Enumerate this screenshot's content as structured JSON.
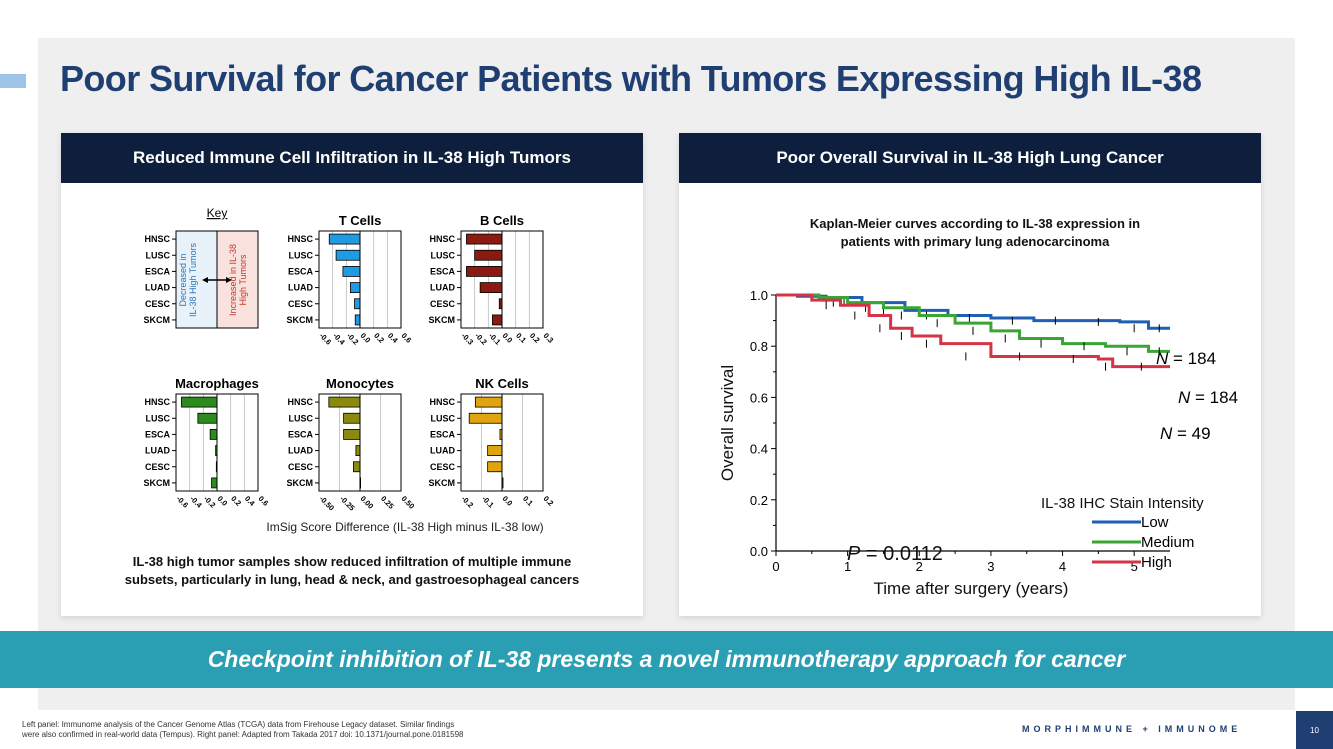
{
  "slide": {
    "title": "Poor Survival for Cancer Patients with Tumors Expressing High IL-38",
    "banner": "Checkpoint inhibition of IL-38 presents a novel immunotherapy approach for cancer",
    "footnote_line1": "Left panel: Immunome analysis of the Cancer Genome Atlas (TCGA) data from Firehouse Legacy dataset. Similar findings",
    "footnote_line2": "were also confirmed in real-world data (Tempus). Right panel: Adapted from Takada 2017 doi: 10.1371/journal.pone.0181598",
    "brand": "MORPHIMMUNE + IMMUNOME",
    "page_number": "10"
  },
  "left_panel": {
    "header": "Reduced Immune Cell Infiltration in IL-38 High Tumors",
    "caption_line1": "IL-38 high tumor samples show reduced infiltration of multiple immune",
    "caption_line2": "subsets, particularly in lung, head & neck, and gastroesophageal cancers",
    "shared_xlabel": "ImSig Score Difference (IL-38 High minus IL-38 low)",
    "key": {
      "title": "Key",
      "left_line1": "Decreased in",
      "left_line2": "IL-38 High Tumors",
      "right_line1": "Increased in IL-38",
      "right_line2": "High Tumors",
      "colors": {
        "left": "#e8f2fb",
        "right": "#f9e1dd",
        "right_text": "#c0392b",
        "left_text": "#2e75b6"
      }
    }
  },
  "right_panel": {
    "header": "Poor Overall Survival in IL-38 High Lung Cancer",
    "subtitle_line1": "Kaplan-Meier curves according to IL-38 expression in",
    "subtitle_line2": "patients with primary lung adenocarcinoma",
    "p_label": "P",
    "p_value": " = 0.0112",
    "n_italic": "N",
    "legend_title": "IL-38 IHC Stain Intensity"
  },
  "chart_data": [
    {
      "type": "bar",
      "orientation": "horizontal",
      "title": "T Cells",
      "categories": [
        "HNSC",
        "LUSC",
        "ESCA",
        "LUAD",
        "CESC",
        "SKCM"
      ],
      "values": [
        -0.45,
        -0.35,
        -0.25,
        -0.14,
        -0.08,
        -0.07
      ],
      "xlim": [
        -0.6,
        0.6
      ],
      "xticks": [
        -0.6,
        -0.4,
        -0.2,
        0.0,
        0.2,
        0.4,
        0.6
      ],
      "tick_labels": [
        "-0.6",
        "-0.4",
        "-0.2",
        "0.0",
        "0.2",
        "0.4",
        "0.6"
      ],
      "color": "#1e9be3"
    },
    {
      "type": "bar",
      "orientation": "horizontal",
      "title": "B Cells",
      "categories": [
        "HNSC",
        "LUSC",
        "ESCA",
        "LUAD",
        "CESC",
        "SKCM"
      ],
      "values": [
        -0.26,
        -0.2,
        -0.26,
        -0.16,
        -0.02,
        -0.07
      ],
      "xlim": [
        -0.3,
        0.3
      ],
      "xticks": [
        -0.3,
        -0.2,
        -0.1,
        0.0,
        0.1,
        0.2,
        0.3
      ],
      "tick_labels": [
        "-0.3",
        "-0.2",
        "-0.1",
        "0.0",
        "0.1",
        "0.2",
        "0.3"
      ],
      "color": "#8b1a10"
    },
    {
      "type": "bar",
      "orientation": "horizontal",
      "title": "Macrophages",
      "categories": [
        "HNSC",
        "LUSC",
        "ESCA",
        "LUAD",
        "CESC",
        "SKCM"
      ],
      "values": [
        -0.52,
        -0.28,
        -0.1,
        -0.02,
        -0.01,
        -0.08
      ],
      "xlim": [
        -0.6,
        0.6
      ],
      "xticks": [
        -0.6,
        -0.4,
        -0.2,
        0.0,
        0.2,
        0.4,
        0.6
      ],
      "tick_labels": [
        "-0.6",
        "-0.4",
        "-0.2",
        "0.0",
        "0.2",
        "0.4",
        "0.6"
      ],
      "color": "#2c8a1f"
    },
    {
      "type": "bar",
      "orientation": "horizontal",
      "title": "Monocytes",
      "categories": [
        "HNSC",
        "LUSC",
        "ESCA",
        "LUAD",
        "CESC",
        "SKCM"
      ],
      "values": [
        -0.38,
        -0.2,
        -0.2,
        -0.05,
        -0.08,
        0
      ],
      "xlim": [
        -0.5,
        0.5
      ],
      "xticks": [
        -0.5,
        -0.25,
        0.0,
        0.25,
        0.5
      ],
      "tick_labels": [
        "-0.50",
        "-0.25",
        "0.00",
        "0.25",
        "0.50"
      ],
      "color": "#8c8a0e"
    },
    {
      "type": "bar",
      "orientation": "horizontal",
      "title": "NK Cells",
      "categories": [
        "HNSC",
        "LUSC",
        "ESCA",
        "LUAD",
        "CESC",
        "SKCM"
      ],
      "values": [
        -0.13,
        -0.16,
        -0.01,
        -0.07,
        -0.07,
        0.005
      ],
      "xlim": [
        -0.2,
        0.2
      ],
      "xticks": [
        -0.2,
        -0.1,
        0.0,
        0.1,
        0.2
      ],
      "tick_labels": [
        "-0.2",
        "-0.1",
        "0.0",
        "0.1",
        "0.2"
      ],
      "color": "#e0a50e"
    },
    {
      "type": "line",
      "subtype": "kaplan-meier",
      "xlabel": "Time after surgery (years)",
      "ylabel": "Overall survival",
      "xlim": [
        0,
        5.5
      ],
      "ylim": [
        0,
        1.0
      ],
      "xticks": [
        0,
        1,
        2,
        3,
        4,
        5
      ],
      "yticks": [
        0.0,
        0.2,
        0.4,
        0.6,
        0.8,
        1.0
      ],
      "ytick_labels": [
        "0.0",
        "0.2",
        "0.4",
        "0.6",
        "0.8",
        "1.0"
      ],
      "legend_position": "lower-right",
      "series": [
        {
          "name": "Low",
          "n_label": " = 184",
          "color": "#1f5fb4",
          "x": [
            0,
            0.3,
            0.7,
            1.2,
            1.8,
            2.4,
            3.0,
            3.6,
            4.2,
            4.8,
            5.2,
            5.5
          ],
          "y": [
            1.0,
            0.995,
            0.99,
            0.97,
            0.94,
            0.92,
            0.91,
            0.9,
            0.9,
            0.895,
            0.87,
            0.87
          ]
        },
        {
          "name": "Medium",
          "n_label": " = 184",
          "color": "#3aa535",
          "x": [
            0,
            0.6,
            1.0,
            1.5,
            2.0,
            2.5,
            3.0,
            3.4,
            4.0,
            4.6,
            5.2,
            5.5
          ],
          "y": [
            1.0,
            0.99,
            0.97,
            0.95,
            0.92,
            0.89,
            0.86,
            0.83,
            0.81,
            0.8,
            0.78,
            0.78
          ]
        },
        {
          "name": "High",
          "n_label": " = 49",
          "color": "#d63346",
          "x": [
            0,
            0.5,
            0.9,
            1.3,
            1.6,
            1.9,
            2.3,
            3.0,
            3.8,
            4.5,
            4.7,
            5.5
          ],
          "y": [
            1.0,
            0.98,
            0.96,
            0.92,
            0.87,
            0.84,
            0.81,
            0.76,
            0.76,
            0.75,
            0.72,
            0.72
          ]
        }
      ]
    }
  ]
}
